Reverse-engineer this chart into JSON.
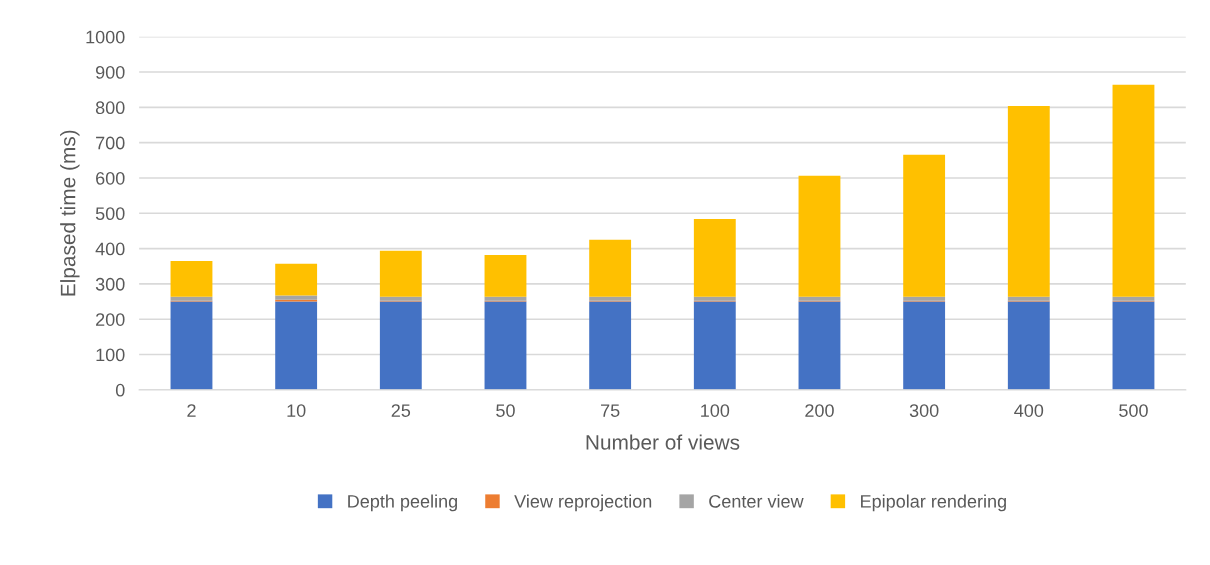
{
  "chart_data": {
    "type": "bar",
    "stacked": true,
    "xlabel": "Number of views",
    "ylabel": "Elpased time (ms)",
    "categories": [
      "2",
      "10",
      "25",
      "50",
      "75",
      "100",
      "200",
      "300",
      "400",
      "500"
    ],
    "series": [
      {
        "name": "Depth peeling",
        "color": "#4472c4",
        "values": [
          250,
          250,
          250,
          250,
          250,
          250,
          250,
          250,
          250,
          250
        ]
      },
      {
        "name": "View reprojection",
        "color": "#ed7d31",
        "values": [
          2,
          5,
          2,
          2,
          2,
          2,
          2,
          2,
          2,
          2
        ]
      },
      {
        "name": "Center view",
        "color": "#a5a5a5",
        "values": [
          12,
          12,
          12,
          12,
          12,
          12,
          12,
          12,
          12,
          12
        ]
      },
      {
        "name": "Epipolar rendering",
        "color": "#ffc000",
        "values": [
          101,
          90,
          130,
          118,
          161,
          220,
          342,
          402,
          540,
          600
        ]
      }
    ],
    "ylim": [
      0,
      1000
    ],
    "yticks": [
      0,
      100,
      200,
      300,
      400,
      500,
      600,
      700,
      800,
      900,
      1000
    ],
    "grid": "y",
    "legend": "bottom"
  }
}
